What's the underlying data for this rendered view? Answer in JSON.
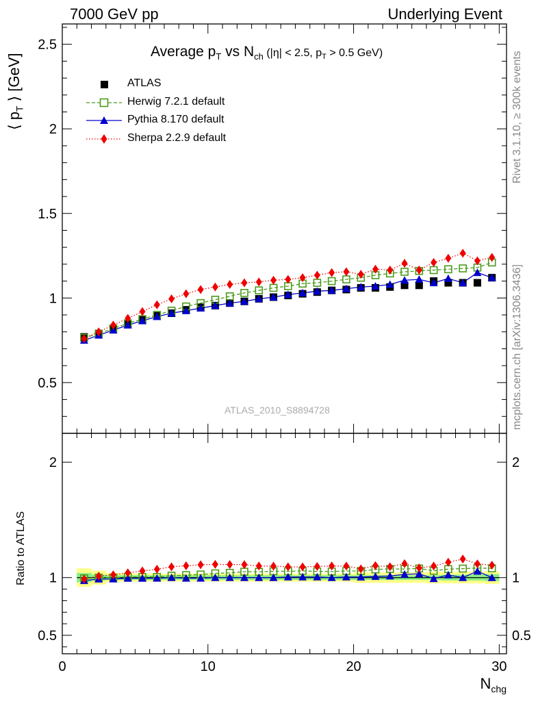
{
  "header": {
    "left": "7000 GeV pp",
    "right": "Underlying Event"
  },
  "side_text": {
    "rivet": "Rivet 3.1.10, ≥ 300k events",
    "mcplots": "mcplots.cern.ch [arXiv:1306.3436]"
  },
  "plot": {
    "title_main": "Average p",
    "title_main_sub": "T",
    "title_vs": " vs N",
    "title_vs_sub": "ch",
    "title_cuts_1": " (|η| < 2.5, p",
    "title_cuts_sub": "T",
    "title_cuts_2": " > 0.5 GeV)",
    "ylabel_top": "⟨ p",
    "ylabel_top_sub": "T",
    "ylabel_top_end": " ⟩ [GeV]",
    "ylabel_bottom": "Ratio to ATLAS",
    "xlabel": "N",
    "xlabel_sub": "chg",
    "watermark": "ATLAS_2010_S8894728"
  },
  "legend": [
    {
      "label": "ATLAS",
      "color": "#000000",
      "marker": "square-filled",
      "line": "none"
    },
    {
      "label": "Herwig 7.2.1 default",
      "color": "#4a9a1a",
      "marker": "square-open",
      "line": "dashed"
    },
    {
      "label": "Pythia 8.170 default",
      "color": "#0000cc",
      "marker": "triangle",
      "line": "solid"
    },
    {
      "label": "Sherpa 2.2.9 default",
      "color": "#ee0000",
      "marker": "diamond",
      "line": "dotted"
    }
  ],
  "chart_data": {
    "type": "scatter",
    "xlim": [
      0,
      30.5
    ],
    "ylim_top": [
      0.2,
      2.62
    ],
    "ylim_ratio": [
      0.34,
      2.25
    ],
    "x_ticks": [
      "0",
      "10",
      "20",
      "30"
    ],
    "y_ticks_top": [
      "0.5",
      "1",
      "1.5",
      "2",
      "2.5"
    ],
    "y_ticks_ratio": [
      "0.5",
      "1",
      "2"
    ],
    "x": [
      1.5,
      2.5,
      3.5,
      4.5,
      5.5,
      6.5,
      7.5,
      8.5,
      9.5,
      10.5,
      11.5,
      12.5,
      13.5,
      14.5,
      15.5,
      16.5,
      17.5,
      18.5,
      19.5,
      20.5,
      21.5,
      22.5,
      23.5,
      24.5,
      25.5,
      26.5,
      27.5,
      28.5,
      29.5
    ],
    "series": [
      {
        "name": "ATLAS",
        "values": [
          0.77,
          0.79,
          0.82,
          0.845,
          0.87,
          0.895,
          0.91,
          0.93,
          0.945,
          0.955,
          0.97,
          0.98,
          0.995,
          1.005,
          1.015,
          1.025,
          1.035,
          1.045,
          1.05,
          1.06,
          1.06,
          1.065,
          1.075,
          1.075,
          1.1,
          1.09,
          1.09,
          1.09,
          1.12
        ]
      },
      {
        "name": "Herwig 7.2.1 default",
        "values": [
          0.765,
          0.79,
          0.82,
          0.85,
          0.875,
          0.9,
          0.925,
          0.95,
          0.97,
          0.99,
          1.01,
          1.03,
          1.045,
          1.06,
          1.07,
          1.085,
          1.09,
          1.1,
          1.11,
          1.12,
          1.135,
          1.145,
          1.155,
          1.16,
          1.165,
          1.17,
          1.175,
          1.18,
          1.21
        ]
      },
      {
        "name": "Pythia 8.170 default",
        "values": [
          0.75,
          0.78,
          0.81,
          0.84,
          0.865,
          0.89,
          0.91,
          0.925,
          0.94,
          0.955,
          0.97,
          0.98,
          0.995,
          1.005,
          1.02,
          1.03,
          1.04,
          1.045,
          1.055,
          1.065,
          1.07,
          1.08,
          1.105,
          1.11,
          1.09,
          1.115,
          1.09,
          1.15,
          1.12
        ]
      },
      {
        "name": "Sherpa 2.2.9 default",
        "values": [
          0.76,
          0.8,
          0.84,
          0.88,
          0.92,
          0.96,
          0.995,
          1.025,
          1.05,
          1.065,
          1.08,
          1.09,
          1.095,
          1.105,
          1.11,
          1.12,
          1.135,
          1.15,
          1.155,
          1.14,
          1.17,
          1.165,
          1.205,
          1.165,
          1.21,
          1.235,
          1.265,
          1.22,
          1.24
        ]
      }
    ],
    "ratio_band_inner": [
      0.04,
      0.025,
      0.02,
      0.02,
      0.02,
      0.02,
      0.02,
      0.02,
      0.02,
      0.02,
      0.02,
      0.02,
      0.02,
      0.02,
      0.02,
      0.02,
      0.02,
      0.02,
      0.02,
      0.02,
      0.02,
      0.02,
      0.02,
      0.02,
      0.02,
      0.025,
      0.025,
      0.025,
      0.03
    ],
    "ratio_band_outer": [
      0.08,
      0.06,
      0.04,
      0.035,
      0.035,
      0.035,
      0.035,
      0.035,
      0.035,
      0.035,
      0.035,
      0.035,
      0.035,
      0.035,
      0.035,
      0.035,
      0.035,
      0.035,
      0.035,
      0.045,
      0.045,
      0.045,
      0.045,
      0.045,
      0.05,
      0.05,
      0.05,
      0.05,
      0.055
    ]
  }
}
